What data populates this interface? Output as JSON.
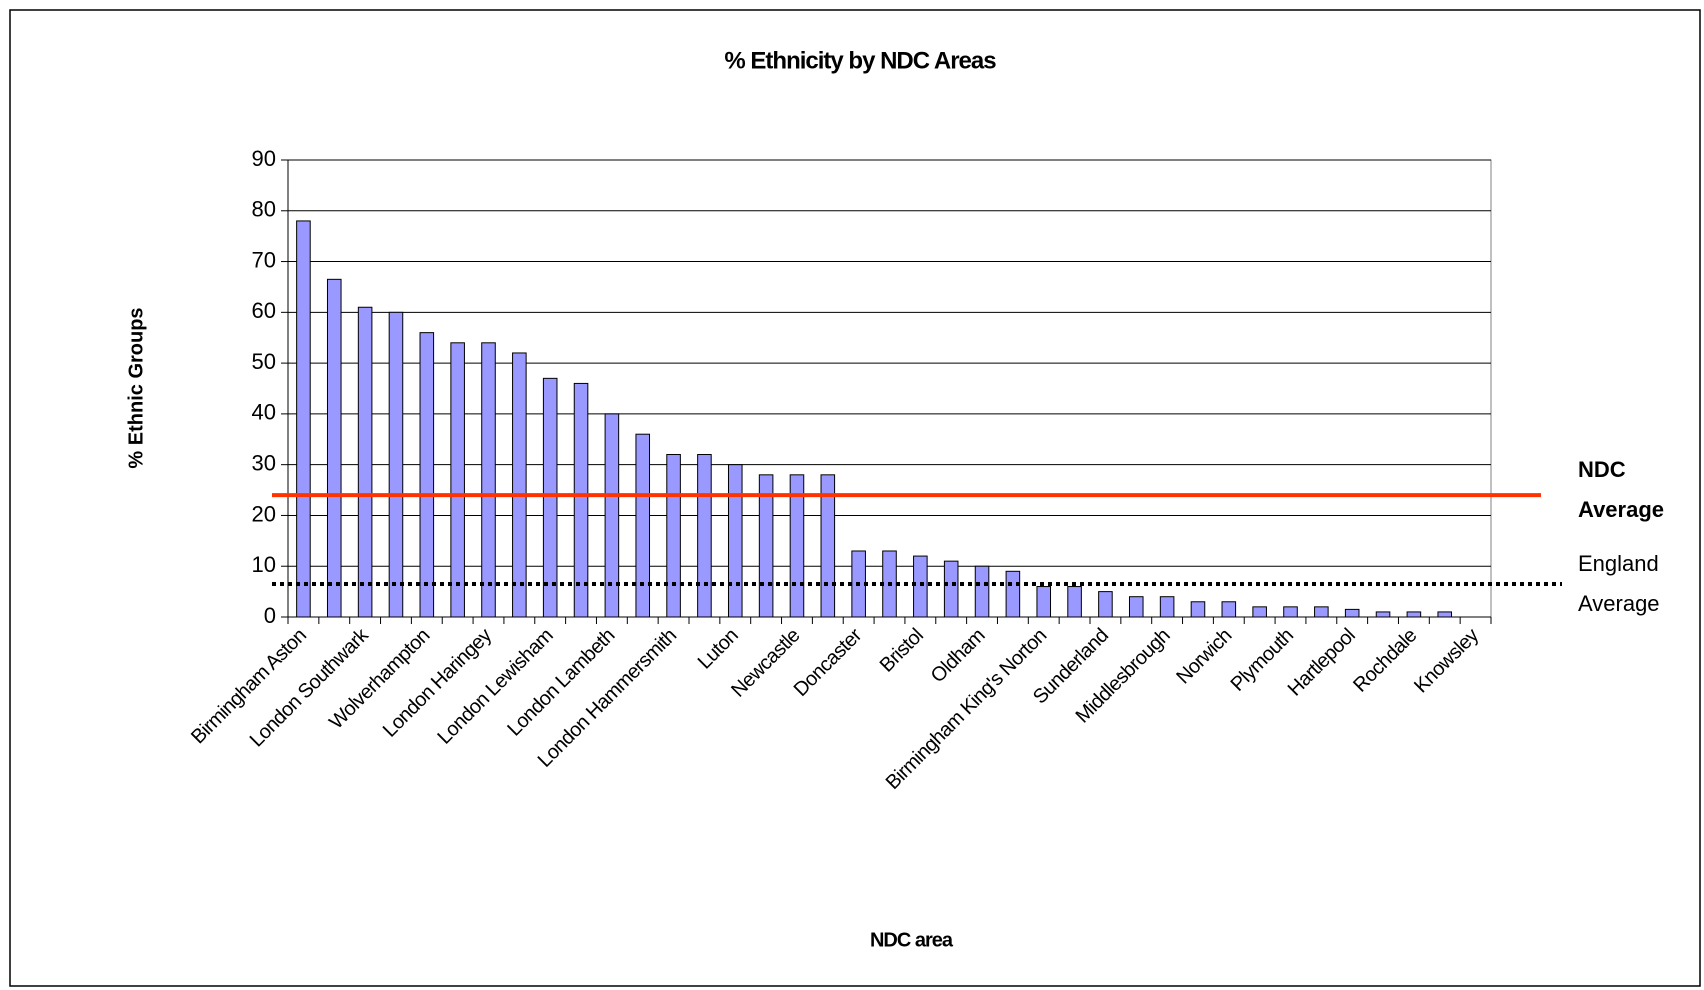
{
  "chart_data": {
    "type": "bar",
    "title": "% Ethnicity by NDC Areas",
    "x_label": "NDC area",
    "y_label": "% Ethnic Groups",
    "categories": [
      "Birmingham Aston",
      null,
      "London Southwark",
      null,
      "Wolverhampton",
      null,
      "London Haringey",
      null,
      "London Lewisham",
      null,
      "London Lambeth",
      null,
      "London Hammersmith",
      null,
      "Luton",
      null,
      "Newcastle",
      null,
      "Doncaster",
      null,
      "Bristol",
      null,
      "Oldham",
      null,
      "Birmingham King's Norton",
      null,
      "Sunderland",
      null,
      "Middlesbrough",
      null,
      "Norwich",
      null,
      "Plymouth",
      null,
      "Hartlepool",
      null,
      "Rochdale",
      null,
      "Knowsley"
    ],
    "values": [
      78,
      66.5,
      61,
      60,
      56,
      54,
      54,
      52,
      47,
      46,
      40,
      36,
      32,
      32,
      30,
      28,
      28,
      28,
      13,
      13,
      12,
      11,
      10,
      9,
      6,
      6,
      5,
      4,
      4,
      3,
      3,
      2,
      2,
      2,
      1.5,
      1,
      1,
      1,
      0
    ],
    "color": "#9999ff",
    "ylim": [
      0,
      90
    ],
    "yticks": [
      0,
      10,
      20,
      30,
      40,
      50,
      60,
      70,
      80,
      90
    ],
    "grid": true,
    "reference_lines": [
      {
        "label": [
          "NDC",
          "Average"
        ],
        "value": 24,
        "color": "#ff3300",
        "style": "solid"
      },
      {
        "label": [
          "England",
          "Average"
        ],
        "value": 6.5,
        "color": "#000000",
        "style": "dotted"
      }
    ]
  }
}
